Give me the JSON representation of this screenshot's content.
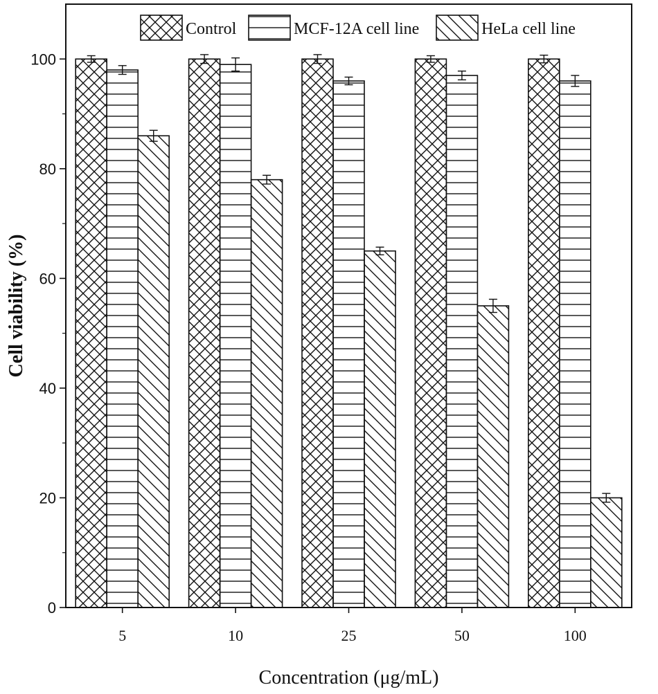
{
  "chart_data": {
    "type": "bar",
    "title": "",
    "xlabel": "Concentration (μg/mL)",
    "ylabel": "Cell viability (%)",
    "categories": [
      "5",
      "10",
      "25",
      "50",
      "100"
    ],
    "ylim": [
      0,
      110
    ],
    "yticks": [
      "0",
      "20",
      "40",
      "60",
      "80",
      "100"
    ],
    "grid": false,
    "legend_position": "top-center",
    "series": [
      {
        "name": "Control",
        "pattern": "crosshatch",
        "values": [
          100,
          100,
          100,
          100,
          100
        ],
        "errors": [
          0.6,
          0.8,
          0.8,
          0.6,
          0.7
        ]
      },
      {
        "name": "MCF-12A cell line",
        "pattern": "horizontal",
        "values": [
          98,
          99,
          96,
          97,
          96
        ],
        "errors": [
          0.8,
          1.2,
          0.7,
          0.8,
          1.0
        ]
      },
      {
        "name": "HeLa cell line",
        "pattern": "diagonal",
        "values": [
          86,
          78,
          65,
          55,
          20
        ],
        "errors": [
          1.0,
          0.8,
          0.7,
          1.2,
          0.8
        ]
      }
    ]
  }
}
